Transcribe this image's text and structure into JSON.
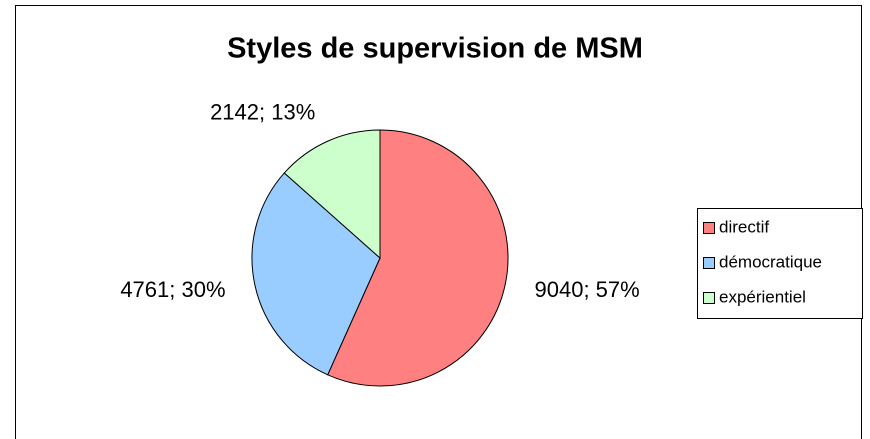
{
  "chart_data": {
    "type": "pie",
    "title": "Styles de supervision de MSM",
    "categories": [
      "directif",
      "démocratique",
      "expérientiel"
    ],
    "values": [
      9040,
      4761,
      2142
    ],
    "value_labels": [
      "9040; 57%",
      "4761; 30%",
      "2142; 13%"
    ],
    "colors": [
      "#ff8080",
      "#99ccff",
      "#ccffcc"
    ],
    "legend": "right"
  }
}
